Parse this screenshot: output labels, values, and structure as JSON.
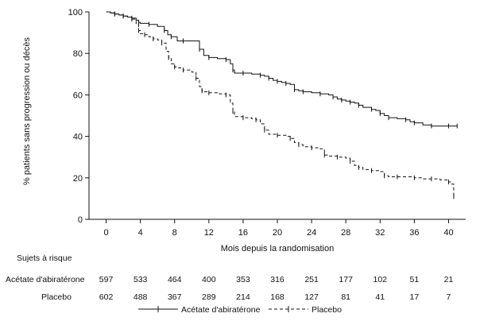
{
  "chart_data": {
    "type": "line",
    "title": "",
    "xlabel": "Mois depuis la randomisation",
    "ylabel": "% patients sans progression ou décès",
    "xlim": [
      -2,
      42
    ],
    "ylim": [
      0,
      100
    ],
    "x_ticks": [
      0,
      4,
      8,
      12,
      16,
      20,
      24,
      28,
      32,
      36,
      40
    ],
    "y_ticks": [
      0,
      20,
      40,
      60,
      80,
      100
    ],
    "legend": "bottom",
    "series": [
      {
        "name": "Acétate d'abiratérone",
        "style": "solid",
        "x": [
          0,
          0.5,
          1,
          1.5,
          2,
          2.5,
          3,
          3.5,
          3.8,
          4,
          5,
          6,
          6.8,
          7.2,
          7.6,
          8.3,
          9,
          10.5,
          10.9,
          11.4,
          12,
          13,
          14,
          14.5,
          14.8,
          15,
          16,
          17,
          18,
          18.5,
          19,
          19.5,
          20,
          20.5,
          21,
          21.5,
          22,
          22.5,
          23,
          24,
          25,
          26,
          26.5,
          27,
          27.5,
          28,
          28.5,
          29,
          29.5,
          30,
          31,
          31.5,
          32,
          32.5,
          33,
          34,
          35,
          35.5,
          36,
          37,
          38,
          39,
          40,
          40.5,
          41
        ],
        "y": [
          100,
          99.5,
          99,
          98.5,
          98,
          97.5,
          97,
          96,
          95,
          94.5,
          94,
          93,
          91,
          89,
          88,
          86,
          86,
          86,
          82,
          79,
          78,
          77.5,
          77,
          75,
          72,
          70.5,
          70.5,
          70,
          69.5,
          69,
          68,
          67,
          66.5,
          66,
          65.5,
          65,
          62.5,
          62,
          61.5,
          61,
          60.5,
          60,
          59,
          58,
          57.5,
          57,
          56.5,
          56,
          55,
          54,
          53,
          52.5,
          51,
          50,
          49,
          48.5,
          48,
          47,
          46.5,
          45.5,
          45,
          45,
          45,
          45,
          45
        ]
      },
      {
        "name": "Placebo",
        "style": "dashed",
        "x": [
          0,
          0.5,
          1,
          1.5,
          2,
          2.5,
          3,
          3.5,
          3.8,
          4,
          4.5,
          5,
          5.5,
          6,
          6.5,
          7,
          7.3,
          7.6,
          8,
          8.5,
          9,
          10,
          10.5,
          10.9,
          11.2,
          11.5,
          12,
          13,
          14,
          14.5,
          14.8,
          15,
          16,
          17,
          17.5,
          18,
          18.5,
          19,
          20,
          21,
          21.5,
          22,
          22.5,
          23,
          24,
          25,
          25.5,
          26,
          27,
          28,
          28.5,
          29,
          29.5,
          30,
          31,
          32,
          32.5,
          33,
          34,
          35,
          36,
          37,
          38,
          39,
          40,
          40.3,
          40.6
        ],
        "y": [
          100,
          99.5,
          99,
          98.5,
          98,
          97.5,
          96.5,
          94,
          91,
          89.5,
          89,
          88,
          87,
          86.5,
          85,
          81,
          78,
          75,
          73.5,
          73,
          72,
          71,
          68,
          64,
          62,
          61.5,
          61,
          60.5,
          60,
          56,
          52,
          49.5,
          49,
          48.5,
          48,
          46,
          43,
          41,
          40.5,
          40,
          39,
          37,
          36,
          35,
          34.5,
          34,
          31,
          30.5,
          30,
          29.5,
          28,
          26,
          25,
          24,
          23.5,
          23,
          21,
          20.5,
          20.5,
          20.5,
          20,
          19.5,
          19.5,
          19,
          18,
          17,
          11
        ]
      }
    ],
    "risk_table": {
      "title": "Sujets à risque",
      "rows": [
        {
          "label": "Acétate d'abiratérone",
          "values": [
            "597",
            "533",
            "464",
            "400",
            "353",
            "316",
            "251",
            "177",
            "102",
            "51",
            "21"
          ]
        },
        {
          "label": "Placebo",
          "values": [
            "602",
            "488",
            "367",
            "289",
            "214",
            "168",
            "127",
            "81",
            "41",
            "17",
            "7"
          ]
        }
      ]
    }
  },
  "colors": {
    "line": "#111111",
    "axis": "#111111",
    "background": "#ffffff"
  }
}
